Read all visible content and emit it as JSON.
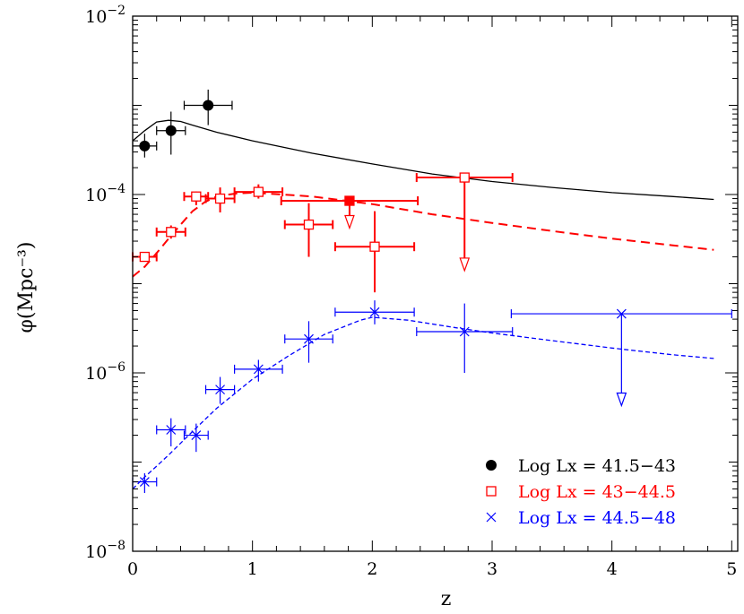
{
  "chart_data": {
    "type": "scatter",
    "title": "",
    "xlabel": "z",
    "ylabel": "φ(Mpc⁻³)",
    "xlim": [
      0,
      5.05
    ],
    "ylim": [
      1e-08,
      0.01
    ],
    "yscale": "log",
    "x_ticks": [
      0,
      1,
      2,
      3,
      4,
      5
    ],
    "y_ticks": [
      {
        "value": 1e-08,
        "base": "10",
        "exp": "−8"
      },
      {
        "value": 1e-06,
        "base": "10",
        "exp": "−6"
      },
      {
        "value": 0.0001,
        "base": "10",
        "exp": "−4"
      },
      {
        "value": 0.01,
        "base": "10",
        "exp": "−2"
      }
    ],
    "grid": false,
    "legend_position": "bottom-right",
    "series": [
      {
        "name": "Log Lx = 41.5−43",
        "color": "#000000",
        "marker": "filled-circle",
        "points": [
          {
            "x": 0.1,
            "y": 0.00035,
            "xerr": [
              0.1,
              0.1
            ],
            "ylo": 0.00026,
            "yhi": 0.00048
          },
          {
            "x": 0.32,
            "y": 0.00052,
            "xerr": [
              0.12,
              0.12
            ],
            "ylo": 0.00028,
            "yhi": 0.00085
          },
          {
            "x": 0.63,
            "y": 0.001,
            "xerr": [
              0.2,
              0.2
            ],
            "ylo": 0.0006,
            "yhi": 0.0015
          }
        ],
        "model": {
          "style": "solid",
          "width": 1.3,
          "x": [
            0.0,
            0.1,
            0.2,
            0.3,
            0.4,
            0.5,
            0.7,
            1.0,
            1.5,
            2.0,
            2.5,
            3.0,
            3.5,
            4.0,
            4.5,
            4.85
          ],
          "y": [
            0.0004,
            0.00052,
            0.00065,
            0.00068,
            0.00066,
            0.0006,
            0.0005,
            0.0004,
            0.00029,
            0.00022,
            0.00017,
            0.00014,
            0.00012,
            0.000105,
            9.5e-05,
            8.8e-05
          ]
        }
      },
      {
        "name": "Log Lx = 43−44.5",
        "color": "#ff0000",
        "marker": "open-square",
        "points": [
          {
            "x": 0.1,
            "y": 2e-05,
            "xerr": [
              0.1,
              0.1
            ],
            "ylo": 1.8e-05,
            "yhi": 2.2e-05
          },
          {
            "x": 0.32,
            "y": 3.8e-05,
            "xerr": [
              0.12,
              0.12
            ],
            "ylo": 3.2e-05,
            "yhi": 4.5e-05
          },
          {
            "x": 0.53,
            "y": 9.5e-05,
            "xerr": [
              0.1,
              0.1
            ],
            "ylo": 7.6e-05,
            "yhi": 0.000108
          },
          {
            "x": 0.73,
            "y": 9e-05,
            "xerr": [
              0.12,
              0.12
            ],
            "ylo": 6.3e-05,
            "yhi": 0.00012
          },
          {
            "x": 1.05,
            "y": 0.000107,
            "xerr": [
              0.2,
              0.2
            ],
            "ylo": 9e-05,
            "yhi": 0.00013
          },
          {
            "x": 1.47,
            "y": 4.6e-05,
            "xerr": [
              0.2,
              0.2
            ],
            "ylo": 2e-05,
            "yhi": 8e-05
          },
          {
            "x": 2.02,
            "y": 2.6e-05,
            "xerr": [
              0.33,
              0.33
            ],
            "ylo": 8e-06,
            "yhi": 6.5e-05
          },
          {
            "x": 2.77,
            "y": 0.000155,
            "xerr": [
              0.4,
              0.4
            ],
            "ylo": 0.000155,
            "yhi": 0.000155,
            "upper_limit": true,
            "arrow_to": 1.4e-05
          }
        ],
        "upper_limit_points": [
          {
            "x": 1.81,
            "y": 8.5e-05,
            "xerr": [
              0.57,
              0.57
            ],
            "marker": "filled-square",
            "upper_limit": true,
            "arrow_to": 4.2e-05
          }
        ],
        "model": {
          "style": "dashed",
          "width": 2,
          "x": [
            0.0,
            0.1,
            0.2,
            0.3,
            0.4,
            0.5,
            0.6,
            0.7,
            0.85,
            1.0,
            1.5,
            2.0,
            2.5,
            3.0,
            3.5,
            4.0,
            4.5,
            4.85
          ],
          "y": [
            1.2e-05,
            1.55e-05,
            2.2e-05,
            3.2e-05,
            4.6e-05,
            6.5e-05,
            8.2e-05,
            9.5e-05,
            0.000102,
            0.000105,
            9.5e-05,
            7.8e-05,
            6e-05,
            4.8e-05,
            3.9e-05,
            3.2e-05,
            2.7e-05,
            2.4e-05
          ]
        }
      },
      {
        "name": "Log Lx = 44.5−48",
        "color": "#0000ff",
        "marker": "cross",
        "points": [
          {
            "x": 0.1,
            "y": 6e-08,
            "xerr": [
              0.1,
              0.1
            ],
            "ylo": 4.5e-08,
            "yhi": 7.5e-08
          },
          {
            "x": 0.32,
            "y": 2.3e-07,
            "xerr": [
              0.12,
              0.12
            ],
            "ylo": 1.5e-07,
            "yhi": 3.1e-07
          },
          {
            "x": 0.53,
            "y": 2e-07,
            "xerr": [
              0.1,
              0.1
            ],
            "ylo": 1.3e-07,
            "yhi": 2.7e-07
          },
          {
            "x": 0.73,
            "y": 6.5e-07,
            "xerr": [
              0.12,
              0.12
            ],
            "ylo": 4.5e-07,
            "yhi": 9e-07
          },
          {
            "x": 1.05,
            "y": 1.1e-06,
            "xerr": [
              0.2,
              0.2
            ],
            "ylo": 8e-07,
            "yhi": 1.4e-06
          },
          {
            "x": 1.47,
            "y": 2.4e-06,
            "xerr": [
              0.2,
              0.2
            ],
            "ylo": 1.3e-06,
            "yhi": 3.8e-06
          },
          {
            "x": 2.02,
            "y": 4.8e-06,
            "xerr": [
              0.33,
              0.33
            ],
            "ylo": 3.5e-06,
            "yhi": 6.5e-06
          },
          {
            "x": 2.77,
            "y": 2.9e-06,
            "xerr": [
              0.4,
              0.4
            ],
            "ylo": 1e-06,
            "yhi": 6e-06
          },
          {
            "x": 4.08,
            "y": 4.6e-06,
            "xerr": [
              0.92,
              0.92
            ],
            "ylo": 4.6e-06,
            "yhi": 4.6e-06,
            "upper_limit": true,
            "arrow_to": 4.3e-07
          }
        ],
        "model": {
          "style": "dotted-dash",
          "width": 1.3,
          "x": [
            0.0,
            0.1,
            0.2,
            0.3,
            0.5,
            0.7,
            1.0,
            1.3,
            1.6,
            1.9,
            2.0,
            2.3,
            2.7,
            3.0,
            3.5,
            4.0,
            4.5,
            4.85
          ],
          "y": [
            5e-08,
            6.8e-08,
            9e-08,
            1.2e-07,
            2.2e-07,
            4e-07,
            8.5e-07,
            1.55e-06,
            2.7e-06,
            3.9e-06,
            4.2e-06,
            3.9e-06,
            3.2e-06,
            2.8e-06,
            2.3e-06,
            1.9e-06,
            1.6e-06,
            1.45e-06
          ]
        }
      }
    ]
  },
  "legend": {
    "entries": [
      {
        "label": "Log Lx = 41.5−43",
        "color": "#000000",
        "marker": "filled-circle"
      },
      {
        "label": "Log Lx = 43−44.5",
        "color": "#ff0000",
        "marker": "open-square"
      },
      {
        "label": "Log Lx = 44.5−48",
        "color": "#0000ff",
        "marker": "cross"
      }
    ]
  }
}
